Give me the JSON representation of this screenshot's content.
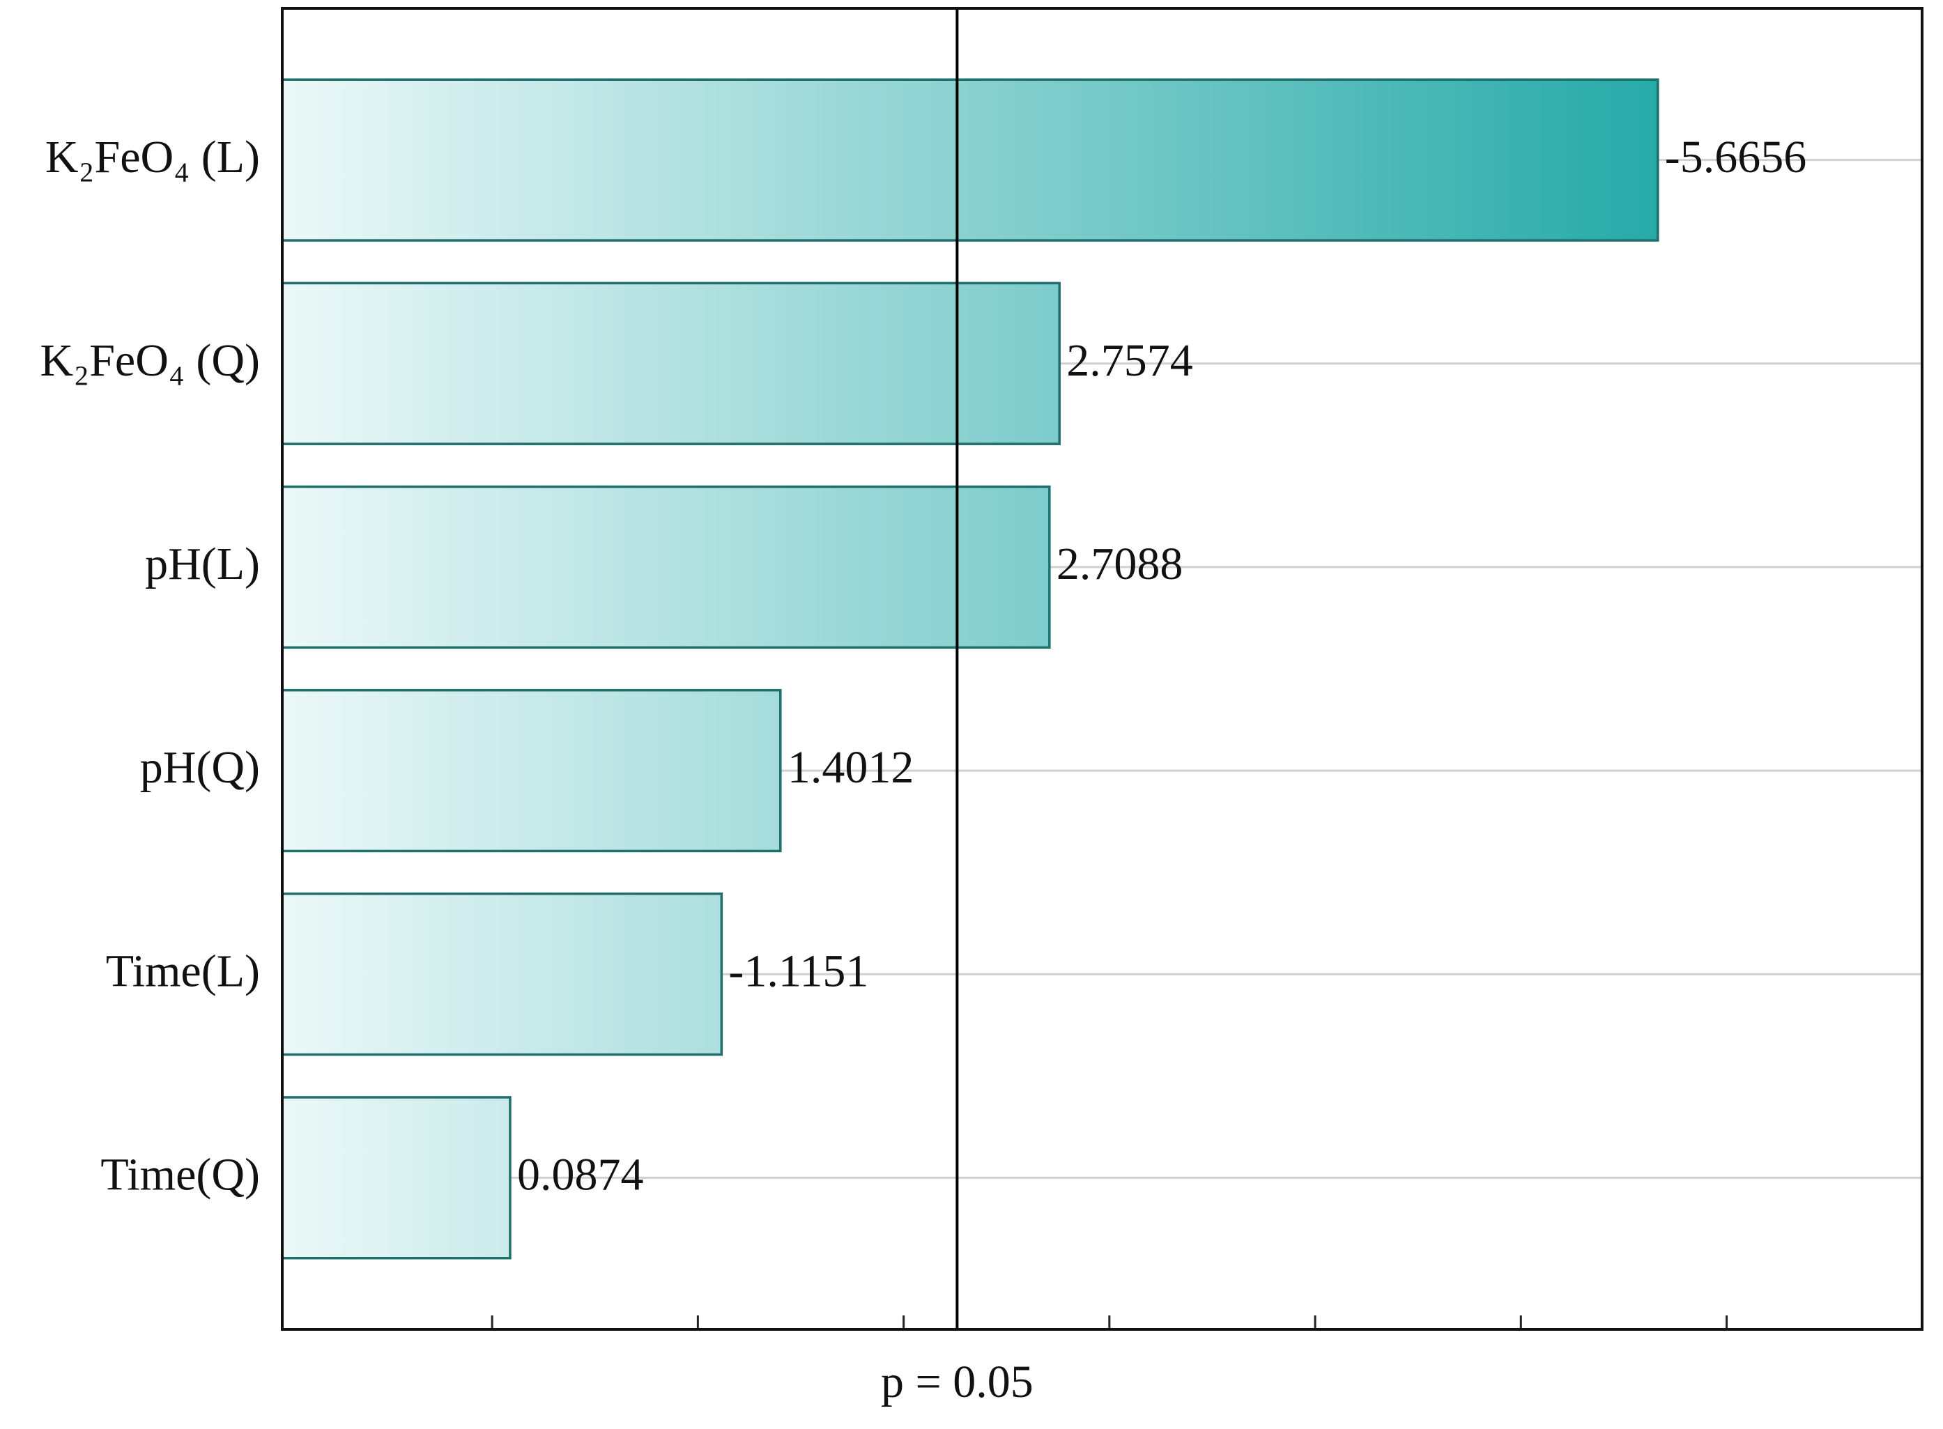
{
  "chart_data": {
    "type": "pareto",
    "categories": [
      "K₂FeO₄ (L)",
      "K₂FeO₄ (Q)",
      "pH(L)",
      "pH(Q)",
      "Time(L)",
      "Time(Q)"
    ],
    "values": [
      -5.6656,
      2.7574,
      2.7088,
      1.4012,
      -1.1151,
      0.0874
    ],
    "color": "#26aaa8",
    "gradient_start": "#ecf8f8",
    "edgecolor": "#1f6f6c",
    "xlim": [
      -1.02,
      6.95
    ],
    "xticks": [
      0,
      1,
      2,
      3,
      4,
      5,
      6
    ],
    "reference_line": {
      "value": 2.26,
      "label": "p = 0.05"
    },
    "grid": true
  }
}
